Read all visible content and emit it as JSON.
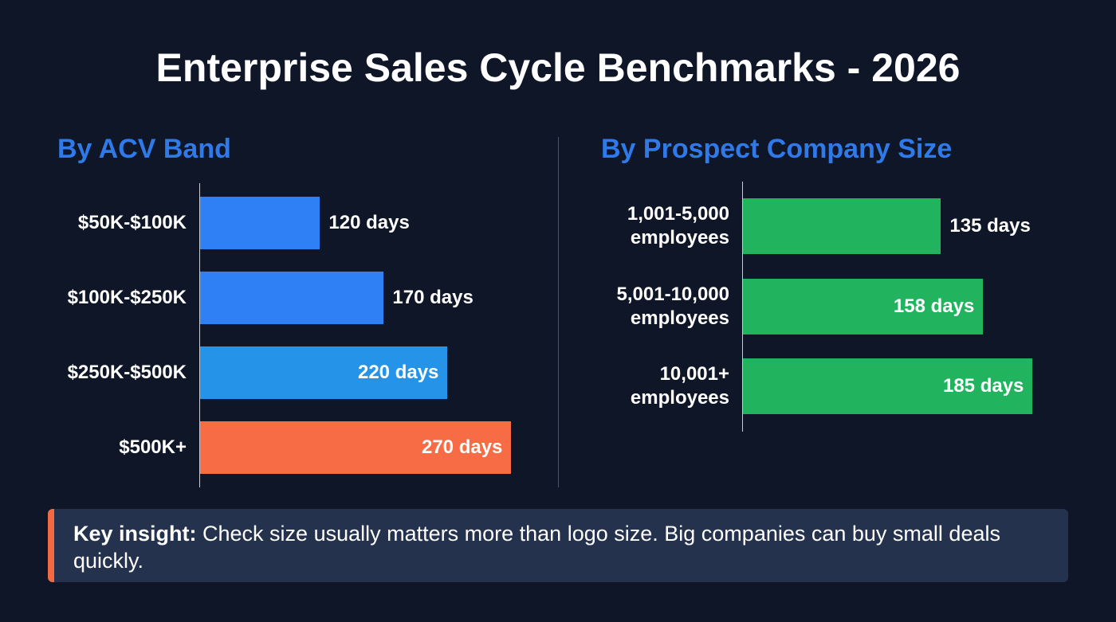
{
  "title": "Enterprise Sales Cycle Benchmarks - 2026",
  "chart_data": [
    {
      "type": "bar",
      "orientation": "horizontal",
      "title": "By ACV Band",
      "unit": "days",
      "categories": [
        "$50K-$100K",
        "$100K-$250K",
        "$250K-$500K",
        "$500K+"
      ],
      "values": [
        120,
        170,
        220,
        270
      ],
      "labels": [
        "120 days",
        "170 days",
        "220 days",
        "270 days"
      ],
      "colors": [
        "#2f80f5",
        "#2f80f5",
        "#2594e8",
        "#f76b45"
      ]
    },
    {
      "type": "bar",
      "orientation": "horizontal",
      "title": "By Prospect Company Size",
      "unit": "days",
      "categories": [
        [
          "1,001-5,000",
          "employees"
        ],
        [
          "5,001-10,000",
          "employees"
        ],
        [
          "10,001+",
          "employees"
        ]
      ],
      "values": [
        135,
        158,
        185
      ],
      "labels": [
        "135 days",
        "158 days",
        "185 days"
      ],
      "colors": [
        "#22b35e",
        "#22b35e",
        "#22b35e"
      ]
    }
  ],
  "insight": {
    "label": "Key insight:",
    "text": " Check size usually matters more than logo size. Big companies can buy small deals quickly.",
    "accent": "#f26a43"
  }
}
